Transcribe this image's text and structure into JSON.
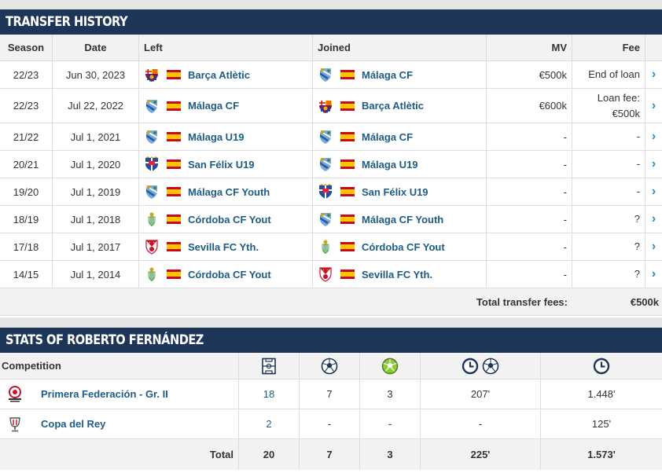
{
  "transfer_history": {
    "title": "TRANSFER HISTORY",
    "columns": {
      "season": "Season",
      "date": "Date",
      "left": "Left",
      "joined": "Joined",
      "mv": "MV",
      "fee": "Fee"
    },
    "rows": [
      {
        "season": "22/23",
        "date": "Jun 30, 2023",
        "left": "Barça Atlètic",
        "left_crest": "barca",
        "joined": "Málaga CF",
        "joined_crest": "malaga",
        "mv": "€500k",
        "fee": "End of loan"
      },
      {
        "season": "22/23",
        "date": "Jul 22, 2022",
        "left": "Málaga CF",
        "left_crest": "malaga",
        "joined": "Barça Atlètic",
        "joined_crest": "barca",
        "mv": "€600k",
        "fee": "Loan fee: €500k"
      },
      {
        "season": "21/22",
        "date": "Jul 1, 2021",
        "left": "Málaga U19",
        "left_crest": "malaga",
        "joined": "Málaga CF",
        "joined_crest": "malaga",
        "mv": "-",
        "fee": "-"
      },
      {
        "season": "20/21",
        "date": "Jul 1, 2020",
        "left": "San Félix U19",
        "left_crest": "sanfelix",
        "joined": "Málaga U19",
        "joined_crest": "malaga",
        "mv": "-",
        "fee": "-"
      },
      {
        "season": "19/20",
        "date": "Jul 1, 2019",
        "left": "Málaga CF Youth",
        "left_crest": "malaga",
        "joined": "San Félix U19",
        "joined_crest": "sanfelix",
        "mv": "-",
        "fee": "-"
      },
      {
        "season": "18/19",
        "date": "Jul 1, 2018",
        "left": "Córdoba CF Yout",
        "left_crest": "cordoba",
        "joined": "Málaga CF Youth",
        "joined_crest": "malaga",
        "mv": "-",
        "fee": "?"
      },
      {
        "season": "17/18",
        "date": "Jul 1, 2017",
        "left": "Sevilla FC Yth.",
        "left_crest": "sevilla",
        "joined": "Córdoba CF Yout",
        "joined_crest": "cordoba",
        "mv": "-",
        "fee": "?"
      },
      {
        "season": "14/15",
        "date": "Jul 1, 2014",
        "left": "Córdoba CF Yout",
        "left_crest": "cordoba",
        "joined": "Sevilla FC Yth.",
        "joined_crest": "sevilla",
        "mv": "-",
        "fee": "?"
      }
    ],
    "total_label": "Total transfer fees:",
    "total_value": "€500k",
    "row_arrow_icon": "chevron-right-icon",
    "flag_icon": "spain-flag-icon"
  },
  "stats": {
    "title": "STATS OF ROBERTO FERNÁNDEZ",
    "columns": {
      "competition": "Competition",
      "appearances_icon": "pitch-icon",
      "goals_icon": "ball-icon",
      "assists_icon": "assist-ball-icon",
      "minutes_per_goal_icon": "clock-ball-icon",
      "minutes_icon": "clock-icon"
    },
    "rows": [
      {
        "competition": "Primera Federación - Gr. II",
        "logo": "primera-federacion-logo",
        "appearances": "18",
        "goals": "7",
        "assists": "3",
        "minutes_per_goal": "207'",
        "minutes": "1.448'"
      },
      {
        "competition": "Copa del Rey",
        "logo": "copa-del-rey-logo",
        "appearances": "2",
        "goals": "-",
        "assists": "-",
        "minutes_per_goal": "-",
        "minutes": "125'"
      }
    ],
    "total": {
      "label": "Total",
      "appearances": "20",
      "goals": "7",
      "assists": "3",
      "minutes_per_goal": "225'",
      "minutes": "1.573'"
    }
  },
  "colors": {
    "header_bg": "#1d3557",
    "link": "#1d5c86",
    "arrow": "#1a8dd6",
    "row_border": "#dddddd",
    "head_bg": "#f2f2f2"
  }
}
